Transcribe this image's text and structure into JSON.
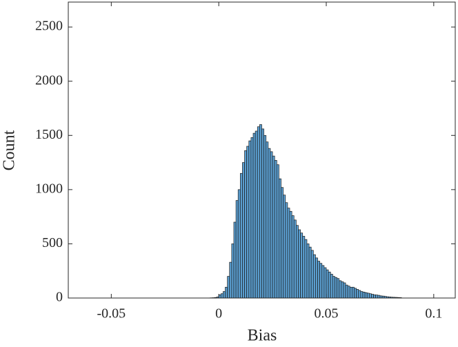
{
  "chart_data": {
    "type": "histogram",
    "x_label": "Bias",
    "y_label": "Count",
    "bins": [
      -0.005,
      -0.004,
      -0.003,
      -0.002,
      -0.001,
      0,
      0.001,
      0.002,
      0.003,
      0.004,
      0.005,
      0.006,
      0.007,
      0.008,
      0.009,
      0.01,
      0.011,
      0.012,
      0.013,
      0.014,
      0.015,
      0.016,
      0.017,
      0.018,
      0.019,
      0.02,
      0.021,
      0.022,
      0.023,
      0.024,
      0.025,
      0.026,
      0.027,
      0.028,
      0.029,
      0.03,
      0.031,
      0.032,
      0.033,
      0.034,
      0.035,
      0.036,
      0.037,
      0.038,
      0.039,
      0.04,
      0.041,
      0.042,
      0.043,
      0.044,
      0.045,
      0.046,
      0.047,
      0.048,
      0.049,
      0.05,
      0.051,
      0.052,
      0.053,
      0.054,
      0.055,
      0.056,
      0.057,
      0.058,
      0.059,
      0.06,
      0.061,
      0.062,
      0.063,
      0.064,
      0.065,
      0.066,
      0.067,
      0.068,
      0.069,
      0.07,
      0.071,
      0.072,
      0.073,
      0.074,
      0.075,
      0.076,
      0.077,
      0.078,
      0.079,
      0.08,
      0.081,
      0.082,
      0.083,
      0.084,
      0.085
    ],
    "counts": [
      1,
      2,
      3,
      5,
      10,
      30,
      40,
      60,
      100,
      200,
      330,
      500,
      700,
      900,
      1000,
      1150,
      1250,
      1360,
      1400,
      1450,
      1480,
      1520,
      1540,
      1580,
      1600,
      1560,
      1500,
      1440,
      1380,
      1350,
      1310,
      1270,
      1230,
      1100,
      1020,
      950,
      880,
      830,
      800,
      760,
      720,
      670,
      630,
      600,
      570,
      540,
      500,
      470,
      440,
      400,
      370,
      340,
      320,
      300,
      280,
      260,
      240,
      220,
      200,
      190,
      180,
      160,
      150,
      140,
      120,
      110,
      100,
      100,
      90,
      80,
      70,
      60,
      55,
      50,
      45,
      40,
      35,
      30,
      28,
      25,
      20,
      18,
      15,
      12,
      10,
      8,
      7,
      6,
      5,
      4
    ],
    "color": "#5b9fd1",
    "xlim": [
      -0.07,
      0.11
    ],
    "xticks": [
      -0.05,
      0,
      0.05,
      0.1
    ],
    "ylim": [
      0,
      2730
    ],
    "yticks": [
      0,
      500,
      1000,
      1500,
      2000,
      2500
    ]
  }
}
